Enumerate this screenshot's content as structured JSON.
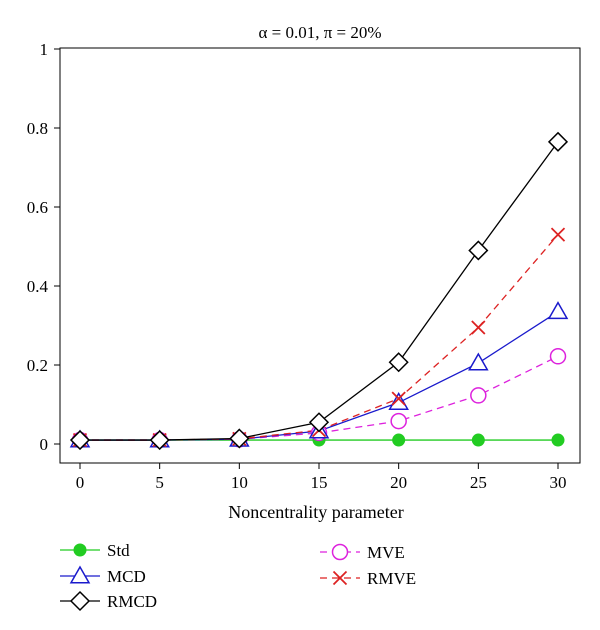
{
  "chart_data": {
    "type": "line",
    "title": "α = 0.01, π = 20%",
    "xlabel": "Noncentrality parameter",
    "ylabel": "",
    "x": [
      0,
      5,
      10,
      15,
      20,
      25,
      30
    ],
    "xticks": [
      "0",
      "5",
      "10",
      "15",
      "20",
      "25",
      "30"
    ],
    "yticks": [
      "0",
      "0.2",
      "0.4",
      "0.6",
      "0.8",
      "1"
    ],
    "xlim": [
      0,
      30
    ],
    "ylim": [
      0,
      1
    ],
    "grid": false,
    "legend_position": "bottom",
    "series": [
      {
        "name": "Std",
        "color": "#22cc22",
        "marker": "filled-circle",
        "dash": "solid",
        "values": [
          0.01,
          0.01,
          0.01,
          0.01,
          0.01,
          0.01,
          0.01
        ]
      },
      {
        "name": "MCD",
        "color": "#1a1acc",
        "marker": "triangle",
        "dash": "solid",
        "values": [
          0.01,
          0.01,
          0.012,
          0.033,
          0.105,
          0.205,
          0.335
        ]
      },
      {
        "name": "RMCD",
        "color": "#000000",
        "marker": "diamond",
        "dash": "solid",
        "values": [
          0.01,
          0.01,
          0.014,
          0.055,
          0.207,
          0.49,
          0.765
        ]
      },
      {
        "name": "MVE",
        "color": "#dd22dd",
        "marker": "circle",
        "dash": "dashed",
        "values": [
          0.01,
          0.01,
          0.012,
          0.028,
          0.058,
          0.123,
          0.222
        ]
      },
      {
        "name": "RMVE",
        "color": "#dd2222",
        "marker": "cross",
        "dash": "dashed",
        "values": [
          0.01,
          0.01,
          0.013,
          0.035,
          0.115,
          0.295,
          0.53
        ]
      }
    ]
  }
}
